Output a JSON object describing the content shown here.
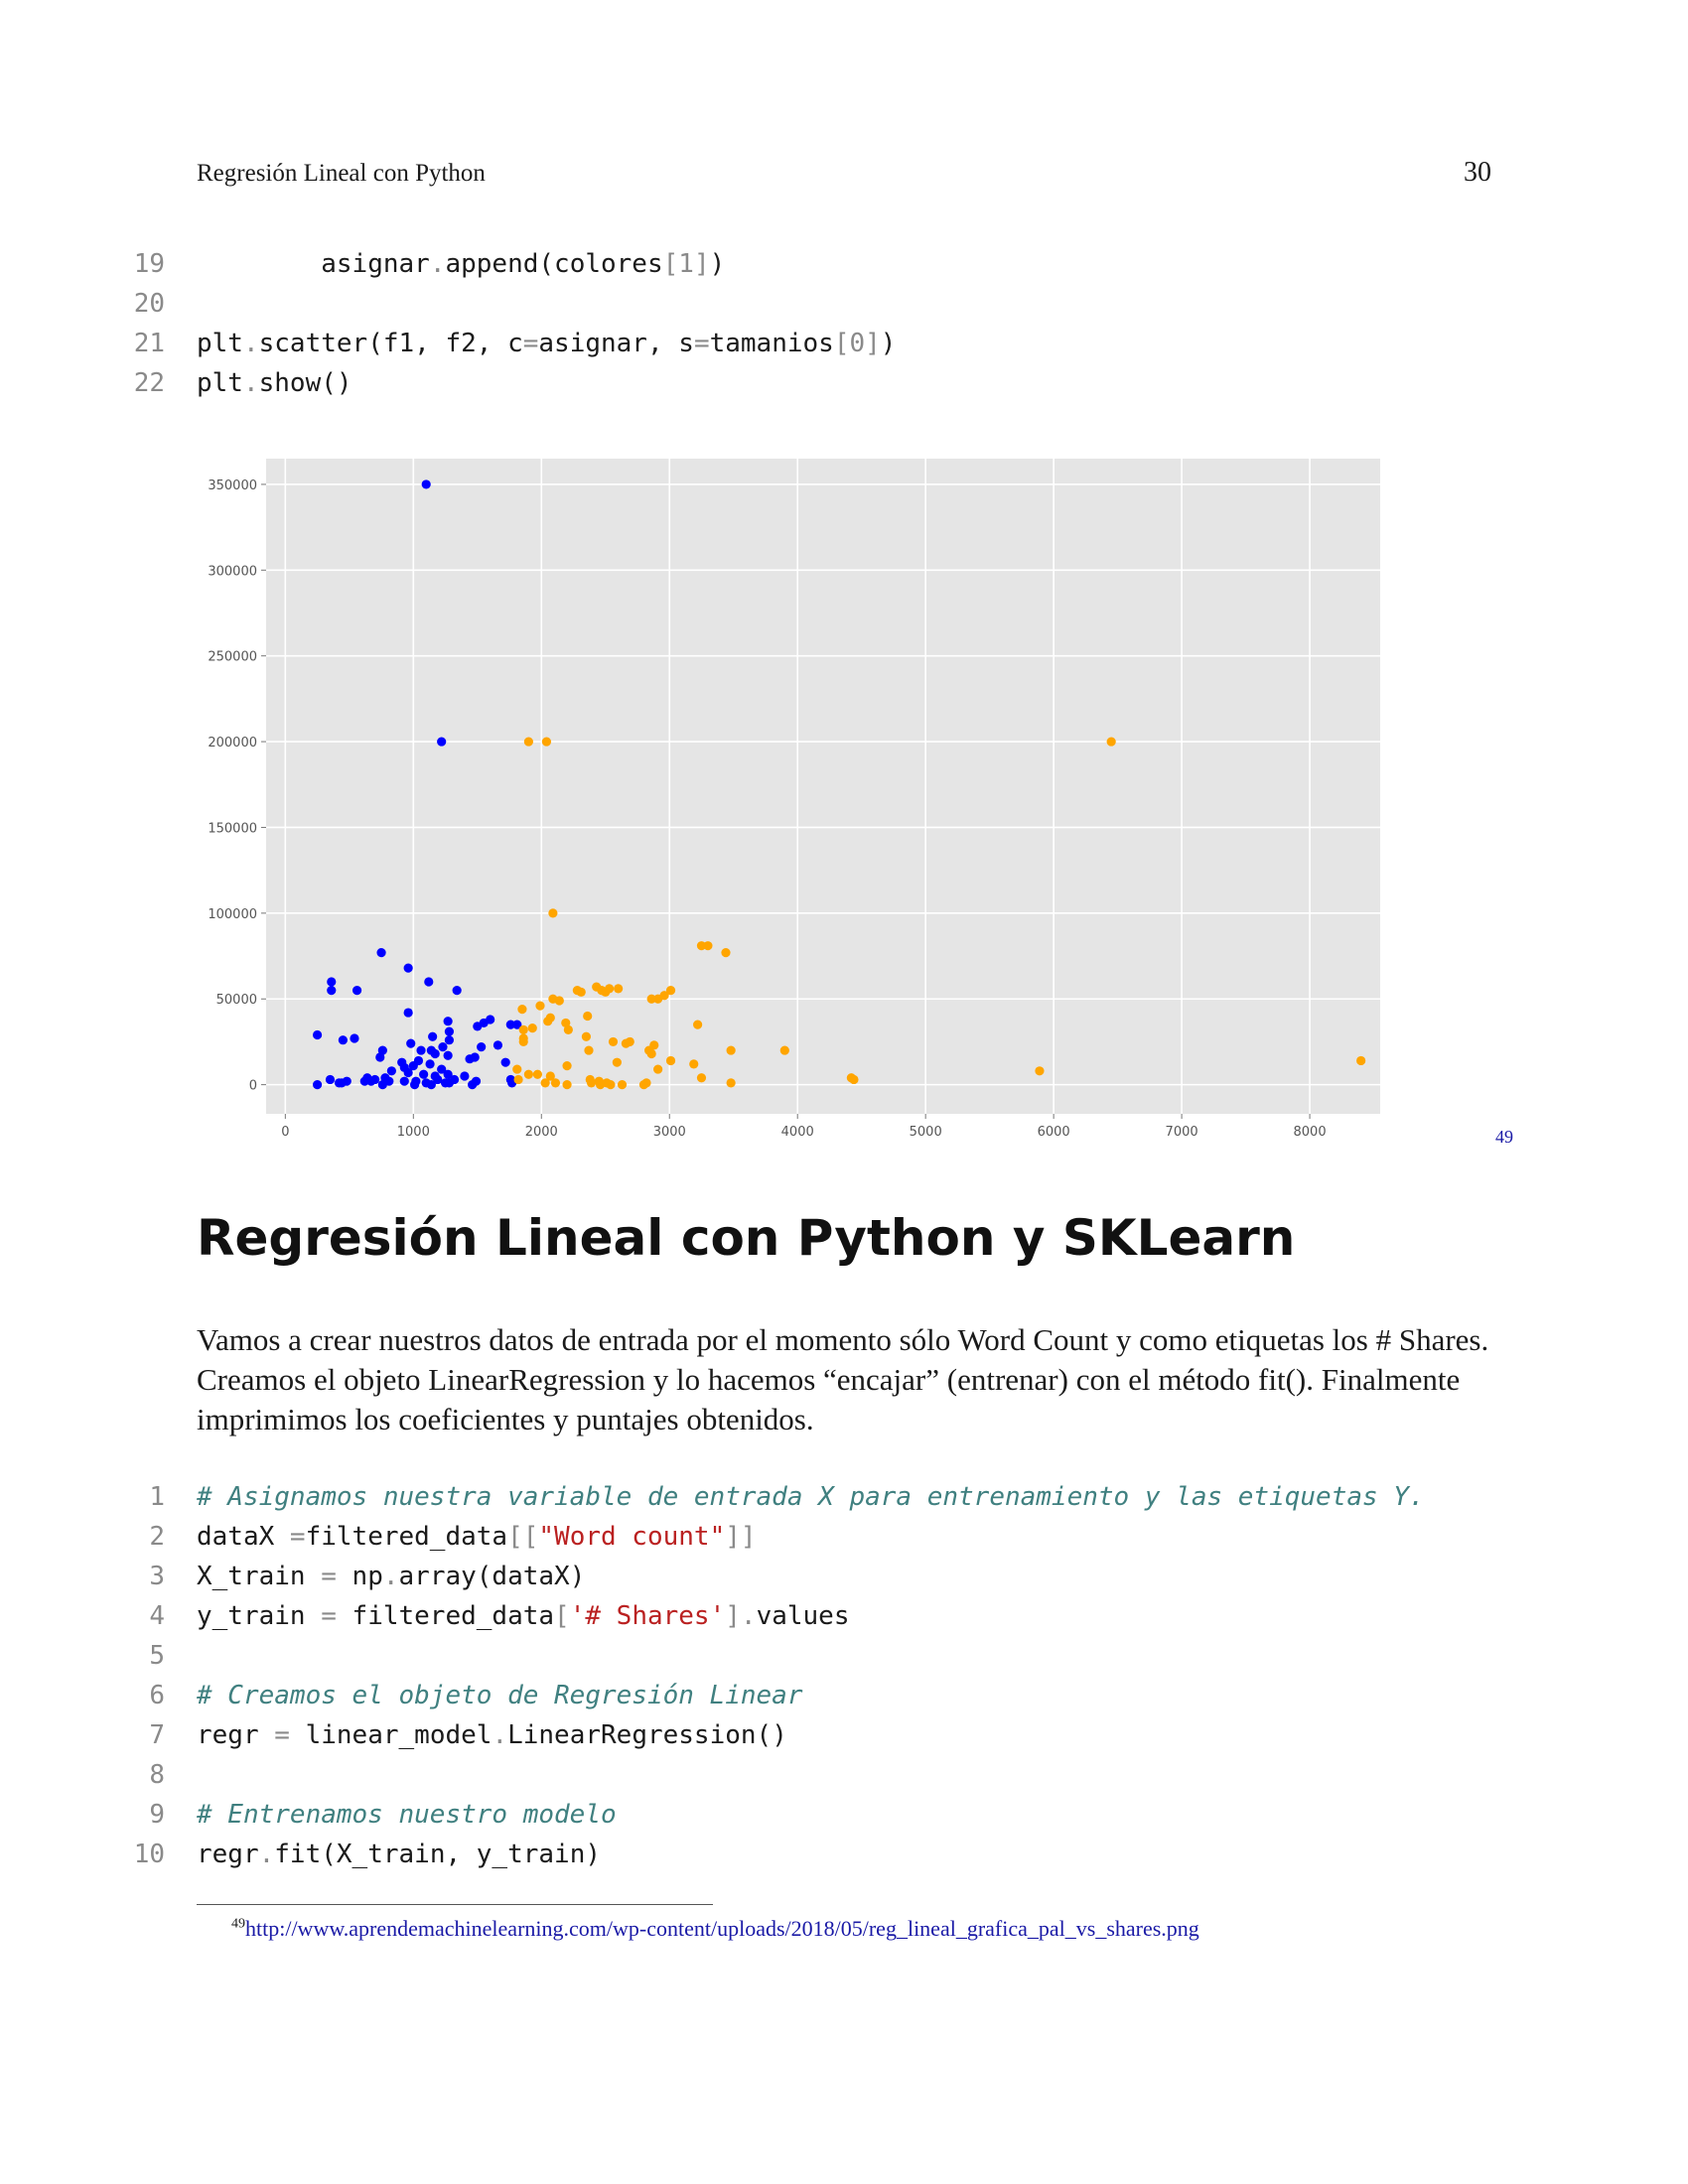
{
  "header": {
    "title": "Regresión Lineal con Python",
    "page_number": "30"
  },
  "code_block_1": [
    {
      "n": "19",
      "indent": "        ",
      "parts": [
        [
          "t",
          "asignar"
        ],
        [
          "o",
          "."
        ],
        [
          "t",
          "append(colores"
        ],
        [
          "o",
          "["
        ],
        [
          "o",
          "1"
        ],
        [
          "o",
          "]"
        ],
        [
          "t",
          ")"
        ]
      ]
    },
    {
      "n": "20",
      "indent": "",
      "parts": []
    },
    {
      "n": "21",
      "indent": "",
      "parts": [
        [
          "t",
          "plt"
        ],
        [
          "o",
          "."
        ],
        [
          "t",
          "scatter(f1, f2, c"
        ],
        [
          "o",
          "="
        ],
        [
          "t",
          "asignar, s"
        ],
        [
          "o",
          "="
        ],
        [
          "t",
          "tamanios"
        ],
        [
          "o",
          "["
        ],
        [
          "o",
          "0"
        ],
        [
          "o",
          "]"
        ],
        [
          "t",
          ")"
        ]
      ]
    },
    {
      "n": "22",
      "indent": "",
      "parts": [
        [
          "t",
          "plt"
        ],
        [
          "o",
          "."
        ],
        [
          "t",
          "show()"
        ]
      ]
    }
  ],
  "figure_ref": "49",
  "chart_data": {
    "type": "scatter",
    "xlim": [
      -150,
      8550
    ],
    "ylim": [
      -17000,
      365000
    ],
    "x_ticks": [
      0,
      1000,
      2000,
      3000,
      4000,
      5000,
      6000,
      7000,
      8000
    ],
    "x_tick_labels": [
      "0",
      "1000",
      "2000",
      "3000",
      "4000",
      "5000",
      "6000",
      "7000",
      "8000"
    ],
    "y_ticks": [
      0,
      50000,
      100000,
      150000,
      200000,
      250000,
      300000,
      350000
    ],
    "y_tick_labels": [
      "0",
      "50000",
      "100000",
      "150000",
      "200000",
      "250000",
      "300000",
      "350000"
    ],
    "grid": true,
    "background": "#e5e5e5",
    "series": [
      {
        "color": "#0000ff",
        "points": [
          [
            1100,
            350000
          ],
          [
            1220,
            200000
          ],
          [
            750,
            77000
          ],
          [
            960,
            68000
          ],
          [
            1120,
            60000
          ],
          [
            360,
            60000
          ],
          [
            360,
            55000
          ],
          [
            560,
            55000
          ],
          [
            1340,
            55000
          ],
          [
            960,
            42000
          ],
          [
            1270,
            37000
          ],
          [
            1600,
            38000
          ],
          [
            1550,
            36000
          ],
          [
            1500,
            34000
          ],
          [
            1760,
            35000
          ],
          [
            1810,
            35000
          ],
          [
            1280,
            31000
          ],
          [
            250,
            29000
          ],
          [
            1150,
            28000
          ],
          [
            540,
            27000
          ],
          [
            450,
            26000
          ],
          [
            1280,
            26000
          ],
          [
            980,
            24000
          ],
          [
            1660,
            23000
          ],
          [
            1230,
            22000
          ],
          [
            1530,
            22000
          ],
          [
            1060,
            20000
          ],
          [
            1140,
            20000
          ],
          [
            760,
            20000
          ],
          [
            1170,
            18000
          ],
          [
            1270,
            17000
          ],
          [
            740,
            16000
          ],
          [
            1480,
            16000
          ],
          [
            1440,
            15000
          ],
          [
            1040,
            14000
          ],
          [
            910,
            13000
          ],
          [
            1720,
            13000
          ],
          [
            1130,
            12000
          ],
          [
            1000,
            11000
          ],
          [
            930,
            10000
          ],
          [
            1220,
            9000
          ],
          [
            830,
            8000
          ],
          [
            960,
            7000
          ],
          [
            1270,
            6000
          ],
          [
            1080,
            6000
          ],
          [
            1170,
            5000
          ],
          [
            1400,
            5000
          ],
          [
            640,
            4000
          ],
          [
            780,
            4000
          ],
          [
            350,
            3000
          ],
          [
            700,
            3000
          ],
          [
            1190,
            3000
          ],
          [
            1320,
            3000
          ],
          [
            1490,
            2000
          ],
          [
            1760,
            3000
          ],
          [
            620,
            2000
          ],
          [
            670,
            2000
          ],
          [
            480,
            2000
          ],
          [
            810,
            2000
          ],
          [
            930,
            2000
          ],
          [
            1020,
            2000
          ],
          [
            420,
            1000
          ],
          [
            250,
            0
          ],
          [
            1100,
            1000
          ],
          [
            1250,
            1000
          ],
          [
            1460,
            0
          ],
          [
            1010,
            0
          ],
          [
            760,
            0
          ],
          [
            1140,
            0
          ],
          [
            1280,
            1000
          ],
          [
            1770,
            1000
          ],
          [
            440,
            1000
          ]
        ]
      },
      {
        "color": "#ffa500",
        "points": [
          [
            6450,
            200000
          ],
          [
            1900,
            200000
          ],
          [
            2040,
            200000
          ],
          [
            2090,
            100000
          ],
          [
            3250,
            81000
          ],
          [
            3300,
            81000
          ],
          [
            3440,
            77000
          ],
          [
            2430,
            57000
          ],
          [
            2530,
            56000
          ],
          [
            2600,
            56000
          ],
          [
            2470,
            55000
          ],
          [
            2280,
            55000
          ],
          [
            2310,
            54000
          ],
          [
            2500,
            54000
          ],
          [
            3010,
            55000
          ],
          [
            2960,
            52000
          ],
          [
            2910,
            50000
          ],
          [
            2860,
            50000
          ],
          [
            2090,
            50000
          ],
          [
            2140,
            49000
          ],
          [
            1990,
            46000
          ],
          [
            1850,
            44000
          ],
          [
            2360,
            40000
          ],
          [
            2070,
            39000
          ],
          [
            2050,
            37000
          ],
          [
            2190,
            36000
          ],
          [
            1930,
            33000
          ],
          [
            3220,
            35000
          ],
          [
            1860,
            32000
          ],
          [
            2210,
            32000
          ],
          [
            2350,
            28000
          ],
          [
            1860,
            27000
          ],
          [
            1860,
            25000
          ],
          [
            2560,
            25000
          ],
          [
            2690,
            25000
          ],
          [
            2660,
            24000
          ],
          [
            2880,
            23000
          ],
          [
            2840,
            20000
          ],
          [
            3480,
            20000
          ],
          [
            3900,
            20000
          ],
          [
            2370,
            20000
          ],
          [
            2860,
            18000
          ],
          [
            3010,
            14000
          ],
          [
            8400,
            14000
          ],
          [
            2590,
            13000
          ],
          [
            3190,
            12000
          ],
          [
            2200,
            11000
          ],
          [
            1810,
            9000
          ],
          [
            2910,
            9000
          ],
          [
            5890,
            8000
          ],
          [
            1900,
            6000
          ],
          [
            1970,
            6000
          ],
          [
            2070,
            5000
          ],
          [
            3250,
            4000
          ],
          [
            4420,
            4000
          ],
          [
            1820,
            3000
          ],
          [
            4440,
            3000
          ],
          [
            2380,
            3000
          ],
          [
            2450,
            2000
          ],
          [
            2820,
            1000
          ],
          [
            2510,
            1000
          ],
          [
            2030,
            1000
          ],
          [
            2110,
            1000
          ],
          [
            2200,
            0
          ],
          [
            2390,
            1000
          ],
          [
            2460,
            0
          ],
          [
            2540,
            0
          ],
          [
            2630,
            0
          ],
          [
            2800,
            0
          ],
          [
            3480,
            1000
          ]
        ]
      }
    ]
  },
  "section_title": "Regresión Lineal con Python y SKLearn",
  "paragraph": "Vamos a crear nuestros datos de entrada por el momento sólo Word Count y como etiquetas los # Shares. Creamos el objeto LinearRegression y lo hacemos “encajar” (entrenar) con el método fit(). Finalmente imprimimos los coeficientes y puntajes obtenidos.",
  "code_block_2": [
    {
      "n": "1",
      "indent": "",
      "parts": [
        [
          "c",
          "# Asignamos nuestra variable de entrada X para entrenamiento y las etiquetas Y."
        ]
      ]
    },
    {
      "n": "2",
      "indent": "",
      "parts": [
        [
          "t",
          "dataX "
        ],
        [
          "o",
          "="
        ],
        [
          "t",
          "filtered_data"
        ],
        [
          "o",
          "[["
        ],
        [
          "s",
          "\"Word count\""
        ],
        [
          "o",
          "]]"
        ]
      ]
    },
    {
      "n": "3",
      "indent": "",
      "parts": [
        [
          "t",
          "X_train "
        ],
        [
          "o",
          "="
        ],
        [
          "t",
          " np"
        ],
        [
          "o",
          "."
        ],
        [
          "t",
          "array(dataX)"
        ]
      ]
    },
    {
      "n": "4",
      "indent": "",
      "parts": [
        [
          "t",
          "y_train "
        ],
        [
          "o",
          "="
        ],
        [
          "t",
          " filtered_data"
        ],
        [
          "o",
          "["
        ],
        [
          "s",
          "'# Shares'"
        ],
        [
          "o",
          "]."
        ],
        [
          "t",
          "values"
        ]
      ]
    },
    {
      "n": "5",
      "indent": "",
      "parts": []
    },
    {
      "n": "6",
      "indent": "",
      "parts": [
        [
          "c",
          "# Creamos el objeto de Regresión Linear"
        ]
      ]
    },
    {
      "n": "7",
      "indent": "",
      "parts": [
        [
          "t",
          "regr "
        ],
        [
          "o",
          "="
        ],
        [
          "t",
          " linear_model"
        ],
        [
          "o",
          "."
        ],
        [
          "t",
          "LinearRegression()"
        ]
      ]
    },
    {
      "n": "8",
      "indent": "",
      "parts": []
    },
    {
      "n": "9",
      "indent": "",
      "parts": [
        [
          "c",
          "# Entrenamos nuestro modelo"
        ]
      ]
    },
    {
      "n": "10",
      "indent": "",
      "parts": [
        [
          "t",
          "regr"
        ],
        [
          "o",
          "."
        ],
        [
          "t",
          "fit(X_train, y_train)"
        ]
      ]
    }
  ],
  "footnote": {
    "marker": "49",
    "text": "http://www.aprendemachinelearning.com/wp-content/uploads/2018/05/reg_lineal_grafica_pal_vs_shares.png"
  }
}
